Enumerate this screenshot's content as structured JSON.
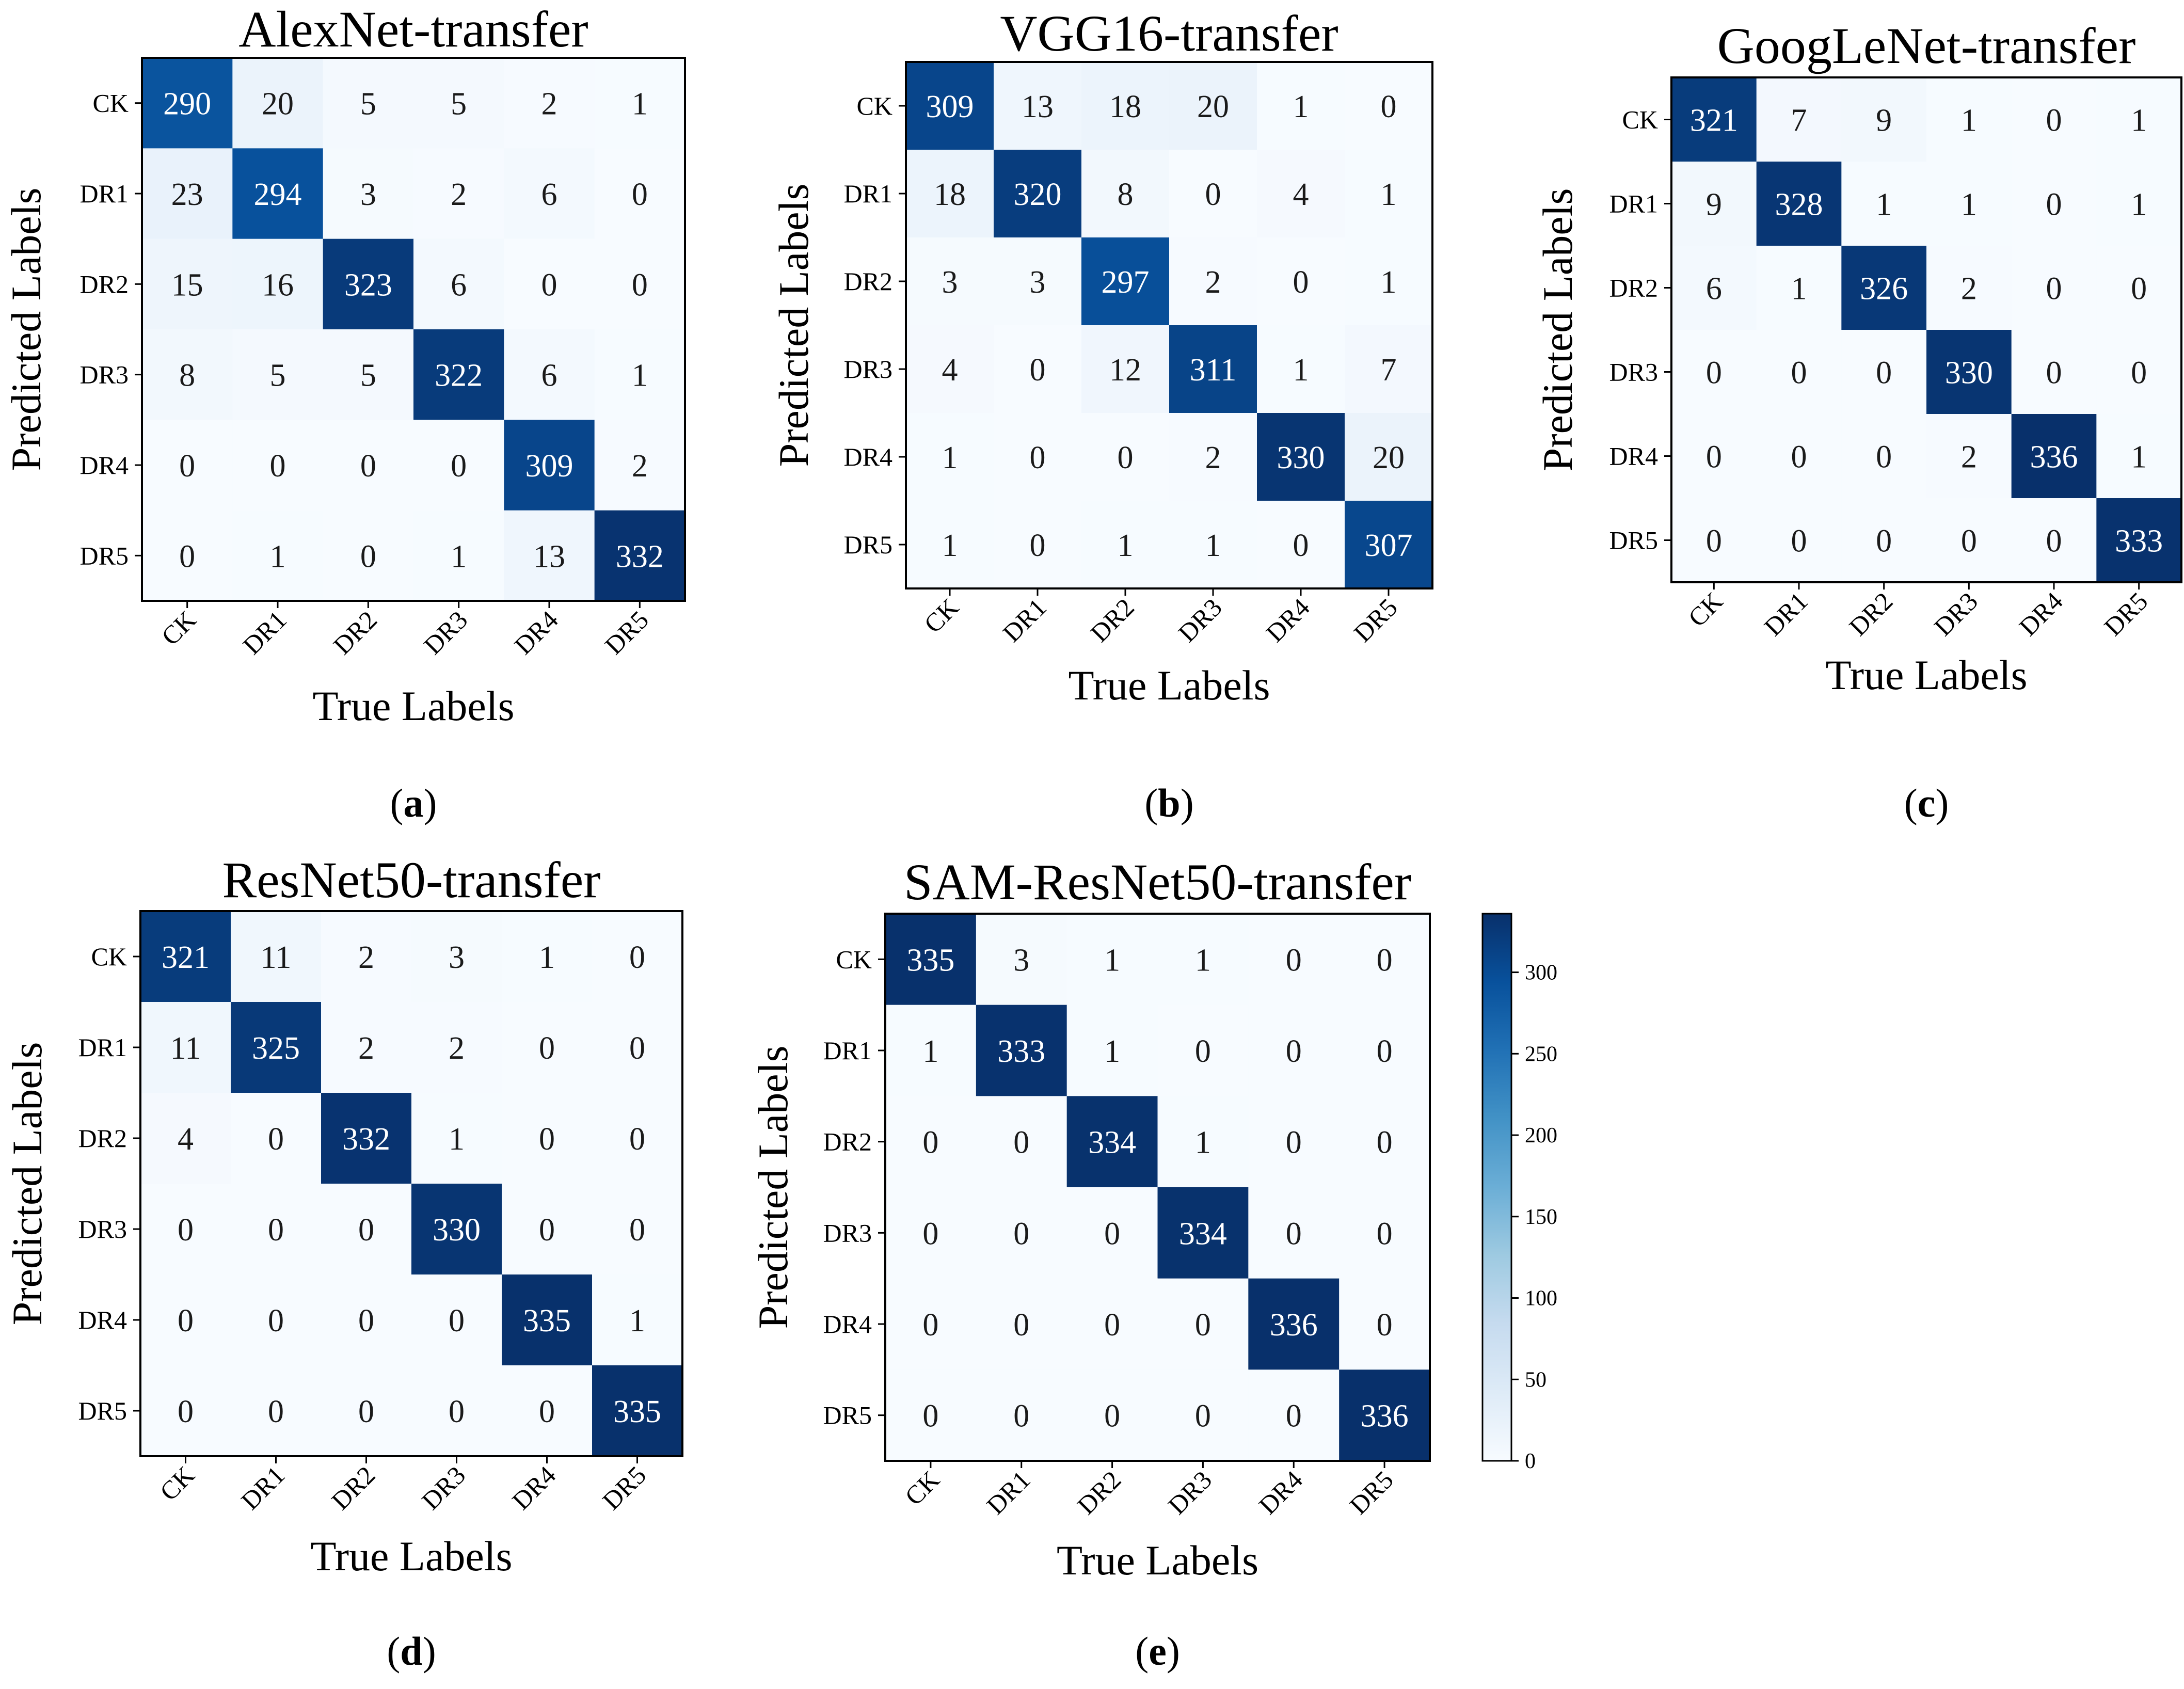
{
  "chart_data": [
    {
      "type": "heatmap",
      "title": "AlexNet-transfer",
      "panel_label": "(a)",
      "xlabel": "True Labels",
      "ylabel": "Predicted Labels",
      "categories": [
        "CK",
        "DR1",
        "DR2",
        "DR3",
        "DR4",
        "DR5"
      ],
      "matrix": [
        [
          290,
          20,
          5,
          5,
          2,
          1
        ],
        [
          23,
          294,
          3,
          2,
          6,
          0
        ],
        [
          15,
          16,
          323,
          6,
          0,
          0
        ],
        [
          8,
          5,
          5,
          322,
          6,
          1
        ],
        [
          0,
          0,
          0,
          0,
          309,
          2
        ],
        [
          0,
          1,
          0,
          1,
          13,
          332
        ]
      ]
    },
    {
      "type": "heatmap",
      "title": "VGG16-transfer",
      "panel_label": "(b)",
      "xlabel": "True Labels",
      "ylabel": "Predicted Labels",
      "categories": [
        "CK",
        "DR1",
        "DR2",
        "DR3",
        "DR4",
        "DR5"
      ],
      "matrix": [
        [
          309,
          13,
          18,
          20,
          1,
          0
        ],
        [
          18,
          320,
          8,
          0,
          4,
          1
        ],
        [
          3,
          3,
          297,
          2,
          0,
          1
        ],
        [
          4,
          0,
          12,
          311,
          1,
          7
        ],
        [
          1,
          0,
          0,
          2,
          330,
          20
        ],
        [
          1,
          0,
          1,
          1,
          0,
          307
        ]
      ]
    },
    {
      "type": "heatmap",
      "title": "GoogLeNet-transfer",
      "panel_label": "(c)",
      "xlabel": "True Labels",
      "ylabel": "Predicted Labels",
      "categories": [
        "CK",
        "DR1",
        "DR2",
        "DR3",
        "DR4",
        "DR5"
      ],
      "matrix": [
        [
          321,
          7,
          9,
          1,
          0,
          1
        ],
        [
          9,
          328,
          1,
          1,
          0,
          1
        ],
        [
          6,
          1,
          326,
          2,
          0,
          0
        ],
        [
          0,
          0,
          0,
          330,
          0,
          0
        ],
        [
          0,
          0,
          0,
          2,
          336,
          1
        ],
        [
          0,
          0,
          0,
          0,
          0,
          333
        ]
      ]
    },
    {
      "type": "heatmap",
      "title": "ResNet50-transfer",
      "panel_label": "(d)",
      "xlabel": "True Labels",
      "ylabel": "Predicted Labels",
      "categories": [
        "CK",
        "DR1",
        "DR2",
        "DR3",
        "DR4",
        "DR5"
      ],
      "matrix": [
        [
          321,
          11,
          2,
          3,
          1,
          0
        ],
        [
          11,
          325,
          2,
          2,
          0,
          0
        ],
        [
          4,
          0,
          332,
          1,
          0,
          0
        ],
        [
          0,
          0,
          0,
          330,
          0,
          0
        ],
        [
          0,
          0,
          0,
          0,
          335,
          1
        ],
        [
          0,
          0,
          0,
          0,
          0,
          335
        ]
      ]
    },
    {
      "type": "heatmap",
      "title": "SAM-ResNet50-transfer",
      "panel_label": "(e)",
      "xlabel": "True Labels",
      "ylabel": "Predicted Labels",
      "categories": [
        "CK",
        "DR1",
        "DR2",
        "DR3",
        "DR4",
        "DR5"
      ],
      "matrix": [
        [
          335,
          3,
          1,
          1,
          0,
          0
        ],
        [
          1,
          333,
          1,
          0,
          0,
          0
        ],
        [
          0,
          0,
          334,
          1,
          0,
          0
        ],
        [
          0,
          0,
          0,
          334,
          0,
          0
        ],
        [
          0,
          0,
          0,
          0,
          336,
          0
        ],
        [
          0,
          0,
          0,
          0,
          0,
          336
        ]
      ]
    }
  ],
  "colorbar": {
    "min": 0,
    "max": 336,
    "ticks": [
      0,
      50,
      100,
      150,
      200,
      250,
      300
    ],
    "colors": [
      "#f7fbff",
      "#deebf7",
      "#c6dbef",
      "#9ecae1",
      "#6baed6",
      "#4292c6",
      "#2171b5",
      "#08519c",
      "#08306b"
    ]
  }
}
